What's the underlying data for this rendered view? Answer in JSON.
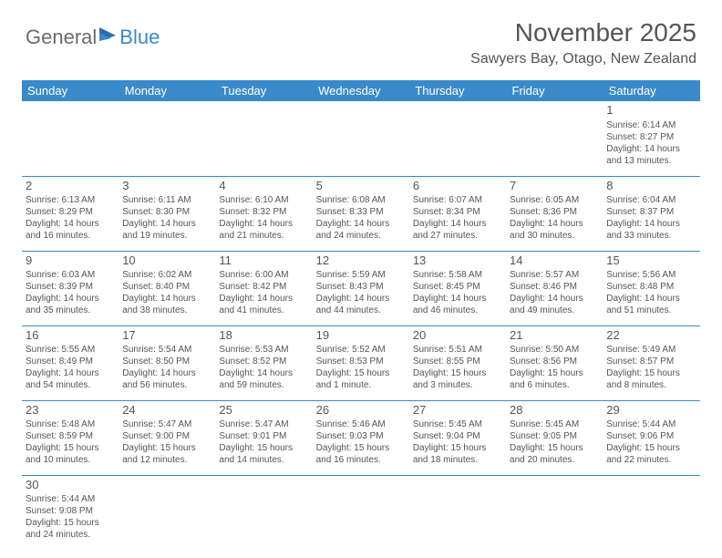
{
  "brand": {
    "part1": "General",
    "part2": "Blue"
  },
  "title": "November 2025",
  "location": "Sawyers Bay, Otago, New Zealand",
  "colors": {
    "header_bg": "#3a8ac9",
    "header_text": "#ffffff",
    "body_text": "#555555",
    "page_bg": "#ffffff"
  },
  "dayHeaders": [
    "Sunday",
    "Monday",
    "Tuesday",
    "Wednesday",
    "Thursday",
    "Friday",
    "Saturday"
  ],
  "weeks": [
    [
      null,
      null,
      null,
      null,
      null,
      null,
      {
        "n": "1",
        "sunrise": "Sunrise: 6:14 AM",
        "sunset": "Sunset: 8:27 PM",
        "daylight": "Daylight: 14 hours and 13 minutes."
      }
    ],
    [
      {
        "n": "2",
        "sunrise": "Sunrise: 6:13 AM",
        "sunset": "Sunset: 8:29 PM",
        "daylight": "Daylight: 14 hours and 16 minutes."
      },
      {
        "n": "3",
        "sunrise": "Sunrise: 6:11 AM",
        "sunset": "Sunset: 8:30 PM",
        "daylight": "Daylight: 14 hours and 19 minutes."
      },
      {
        "n": "4",
        "sunrise": "Sunrise: 6:10 AM",
        "sunset": "Sunset: 8:32 PM",
        "daylight": "Daylight: 14 hours and 21 minutes."
      },
      {
        "n": "5",
        "sunrise": "Sunrise: 6:08 AM",
        "sunset": "Sunset: 8:33 PM",
        "daylight": "Daylight: 14 hours and 24 minutes."
      },
      {
        "n": "6",
        "sunrise": "Sunrise: 6:07 AM",
        "sunset": "Sunset: 8:34 PM",
        "daylight": "Daylight: 14 hours and 27 minutes."
      },
      {
        "n": "7",
        "sunrise": "Sunrise: 6:05 AM",
        "sunset": "Sunset: 8:36 PM",
        "daylight": "Daylight: 14 hours and 30 minutes."
      },
      {
        "n": "8",
        "sunrise": "Sunrise: 6:04 AM",
        "sunset": "Sunset: 8:37 PM",
        "daylight": "Daylight: 14 hours and 33 minutes."
      }
    ],
    [
      {
        "n": "9",
        "sunrise": "Sunrise: 6:03 AM",
        "sunset": "Sunset: 8:39 PM",
        "daylight": "Daylight: 14 hours and 35 minutes."
      },
      {
        "n": "10",
        "sunrise": "Sunrise: 6:02 AM",
        "sunset": "Sunset: 8:40 PM",
        "daylight": "Daylight: 14 hours and 38 minutes."
      },
      {
        "n": "11",
        "sunrise": "Sunrise: 6:00 AM",
        "sunset": "Sunset: 8:42 PM",
        "daylight": "Daylight: 14 hours and 41 minutes."
      },
      {
        "n": "12",
        "sunrise": "Sunrise: 5:59 AM",
        "sunset": "Sunset: 8:43 PM",
        "daylight": "Daylight: 14 hours and 44 minutes."
      },
      {
        "n": "13",
        "sunrise": "Sunrise: 5:58 AM",
        "sunset": "Sunset: 8:45 PM",
        "daylight": "Daylight: 14 hours and 46 minutes."
      },
      {
        "n": "14",
        "sunrise": "Sunrise: 5:57 AM",
        "sunset": "Sunset: 8:46 PM",
        "daylight": "Daylight: 14 hours and 49 minutes."
      },
      {
        "n": "15",
        "sunrise": "Sunrise: 5:56 AM",
        "sunset": "Sunset: 8:48 PM",
        "daylight": "Daylight: 14 hours and 51 minutes."
      }
    ],
    [
      {
        "n": "16",
        "sunrise": "Sunrise: 5:55 AM",
        "sunset": "Sunset: 8:49 PM",
        "daylight": "Daylight: 14 hours and 54 minutes."
      },
      {
        "n": "17",
        "sunrise": "Sunrise: 5:54 AM",
        "sunset": "Sunset: 8:50 PM",
        "daylight": "Daylight: 14 hours and 56 minutes."
      },
      {
        "n": "18",
        "sunrise": "Sunrise: 5:53 AM",
        "sunset": "Sunset: 8:52 PM",
        "daylight": "Daylight: 14 hours and 59 minutes."
      },
      {
        "n": "19",
        "sunrise": "Sunrise: 5:52 AM",
        "sunset": "Sunset: 8:53 PM",
        "daylight": "Daylight: 15 hours and 1 minute."
      },
      {
        "n": "20",
        "sunrise": "Sunrise: 5:51 AM",
        "sunset": "Sunset: 8:55 PM",
        "daylight": "Daylight: 15 hours and 3 minutes."
      },
      {
        "n": "21",
        "sunrise": "Sunrise: 5:50 AM",
        "sunset": "Sunset: 8:56 PM",
        "daylight": "Daylight: 15 hours and 6 minutes."
      },
      {
        "n": "22",
        "sunrise": "Sunrise: 5:49 AM",
        "sunset": "Sunset: 8:57 PM",
        "daylight": "Daylight: 15 hours and 8 minutes."
      }
    ],
    [
      {
        "n": "23",
        "sunrise": "Sunrise: 5:48 AM",
        "sunset": "Sunset: 8:59 PM",
        "daylight": "Daylight: 15 hours and 10 minutes."
      },
      {
        "n": "24",
        "sunrise": "Sunrise: 5:47 AM",
        "sunset": "Sunset: 9:00 PM",
        "daylight": "Daylight: 15 hours and 12 minutes."
      },
      {
        "n": "25",
        "sunrise": "Sunrise: 5:47 AM",
        "sunset": "Sunset: 9:01 PM",
        "daylight": "Daylight: 15 hours and 14 minutes."
      },
      {
        "n": "26",
        "sunrise": "Sunrise: 5:46 AM",
        "sunset": "Sunset: 9:03 PM",
        "daylight": "Daylight: 15 hours and 16 minutes."
      },
      {
        "n": "27",
        "sunrise": "Sunrise: 5:45 AM",
        "sunset": "Sunset: 9:04 PM",
        "daylight": "Daylight: 15 hours and 18 minutes."
      },
      {
        "n": "28",
        "sunrise": "Sunrise: 5:45 AM",
        "sunset": "Sunset: 9:05 PM",
        "daylight": "Daylight: 15 hours and 20 minutes."
      },
      {
        "n": "29",
        "sunrise": "Sunrise: 5:44 AM",
        "sunset": "Sunset: 9:06 PM",
        "daylight": "Daylight: 15 hours and 22 minutes."
      }
    ],
    [
      {
        "n": "30",
        "sunrise": "Sunrise: 5:44 AM",
        "sunset": "Sunset: 9:08 PM",
        "daylight": "Daylight: 15 hours and 24 minutes."
      },
      null,
      null,
      null,
      null,
      null,
      null
    ]
  ]
}
